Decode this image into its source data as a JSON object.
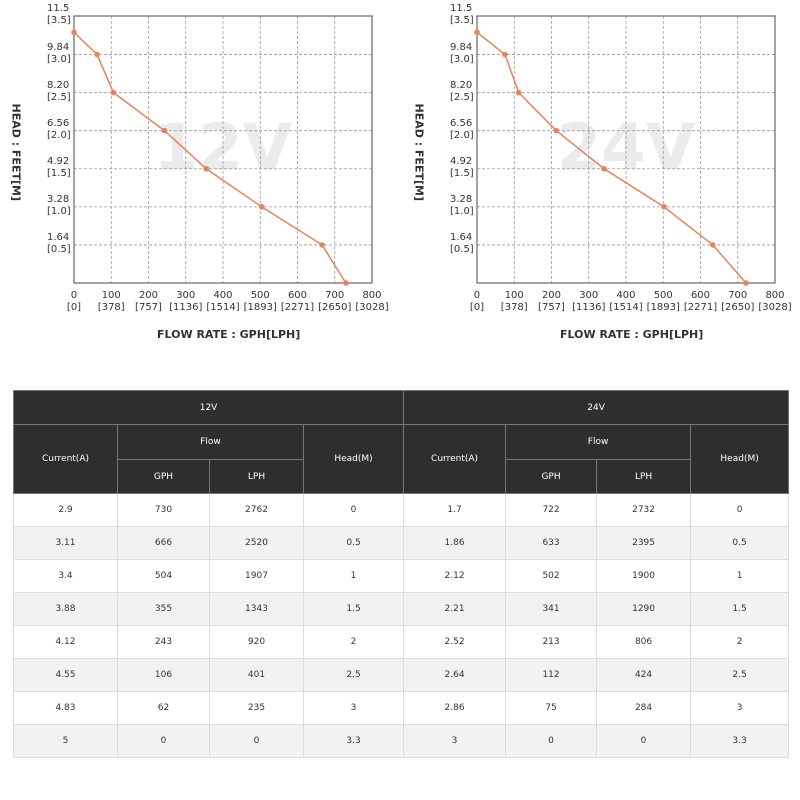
{
  "chart_data": [
    {
      "type": "line",
      "watermark": "12V",
      "ylabel": "HEAD : FEET[M]",
      "xlabel": "FLOW RATE : GPH[LPH]",
      "xlim": [
        0,
        800
      ],
      "ylim": [
        0,
        11.5
      ],
      "xticks": [
        {
          "value": 0,
          "label": "0\n[0]"
        },
        {
          "value": 100,
          "label": "100\n[378]"
        },
        {
          "value": 200,
          "label": "200\n[757]"
        },
        {
          "value": 300,
          "label": "300\n[1136]"
        },
        {
          "value": 400,
          "label": "400\n[1514]"
        },
        {
          "value": 500,
          "label": "500\n[1893]"
        },
        {
          "value": 600,
          "label": "600\n[2271]"
        },
        {
          "value": 700,
          "label": "700\n[2650]"
        },
        {
          "value": 800,
          "label": "800\n[3028]"
        }
      ],
      "yticks": [
        {
          "value": 11.5,
          "label": "11.5\n[3.5]"
        },
        {
          "value": 9.84,
          "label": "9.84\n[3.0]"
        },
        {
          "value": 8.2,
          "label": "8.20\n[2.5]"
        },
        {
          "value": 6.56,
          "label": "6.56\n[2.0]"
        },
        {
          "value": 4.92,
          "label": "4.92\n[1.5]"
        },
        {
          "value": 3.28,
          "label": "3.28\n[1.0]"
        },
        {
          "value": 1.64,
          "label": "1.64\n[0.5]"
        }
      ],
      "grid": true,
      "color": "#e5845c",
      "x": [
        0,
        62,
        106,
        243,
        355,
        504,
        666,
        730
      ],
      "values": [
        10.8,
        9.84,
        8.2,
        6.56,
        4.92,
        3.28,
        1.64,
        0
      ]
    },
    {
      "type": "line",
      "watermark": "24V",
      "ylabel": "HEAD : FEET[M]",
      "xlabel": "FLOW RATE : GPH[LPH]",
      "xlim": [
        0,
        800
      ],
      "ylim": [
        0,
        11.5
      ],
      "xticks": [
        {
          "value": 0,
          "label": "0\n[0]"
        },
        {
          "value": 100,
          "label": "100\n[378]"
        },
        {
          "value": 200,
          "label": "200\n[757]"
        },
        {
          "value": 300,
          "label": "300\n[1136]"
        },
        {
          "value": 400,
          "label": "400\n[1514]"
        },
        {
          "value": 500,
          "label": "500\n[1893]"
        },
        {
          "value": 600,
          "label": "600\n[2271]"
        },
        {
          "value": 700,
          "label": "700\n[2650]"
        },
        {
          "value": 800,
          "label": "800\n[3028]"
        }
      ],
      "yticks": [
        {
          "value": 11.5,
          "label": "11.5\n[3.5]"
        },
        {
          "value": 9.84,
          "label": "9.84\n[3.0]"
        },
        {
          "value": 8.2,
          "label": "8.20\n[2.5]"
        },
        {
          "value": 6.56,
          "label": "6.56\n[2.0]"
        },
        {
          "value": 4.92,
          "label": "4.92\n[1.5]"
        },
        {
          "value": 3.28,
          "label": "3.28\n[1.0]"
        },
        {
          "value": 1.64,
          "label": "1.64\n[0.5]"
        }
      ],
      "grid": true,
      "color": "#e5845c",
      "x": [
        0,
        75,
        112,
        213,
        341,
        502,
        633,
        722
      ],
      "values": [
        10.8,
        9.84,
        8.2,
        6.56,
        4.92,
        3.28,
        1.64,
        0
      ]
    }
  ],
  "table": {
    "groups": [
      {
        "title": "12V",
        "current": "Current(A)",
        "flow": "Flow",
        "gph": "GPH",
        "lph": "LPH",
        "head": "Head(M)",
        "rows": [
          [
            "2.9",
            "730",
            "2762",
            "0"
          ],
          [
            "3.11",
            "666",
            "2520",
            "0.5"
          ],
          [
            "3.4",
            "504",
            "1907",
            "1"
          ],
          [
            "3.88",
            "355",
            "1343",
            "1.5"
          ],
          [
            "4.12",
            "243",
            "920",
            "2"
          ],
          [
            "4.55",
            "106",
            "401",
            "2.5"
          ],
          [
            "4.83",
            "62",
            "235",
            "3"
          ],
          [
            "5",
            "0",
            "0",
            "3.3"
          ]
        ]
      },
      {
        "title": "24V",
        "current": "Current(A)",
        "flow": "Flow",
        "gph": "GPH",
        "lph": "LPH",
        "head": "Head(M)",
        "rows": [
          [
            "1.7",
            "722",
            "2732",
            "0"
          ],
          [
            "1.86",
            "633",
            "2395",
            "0.5"
          ],
          [
            "2.12",
            "502",
            "1900",
            "1"
          ],
          [
            "2.21",
            "341",
            "1290",
            "1.5"
          ],
          [
            "2.52",
            "213",
            "806",
            "2"
          ],
          [
            "2.64",
            "112",
            "424",
            "2.5"
          ],
          [
            "2.86",
            "75",
            "284",
            "3"
          ],
          [
            "3",
            "0",
            "0",
            "3.3"
          ]
        ]
      }
    ]
  }
}
